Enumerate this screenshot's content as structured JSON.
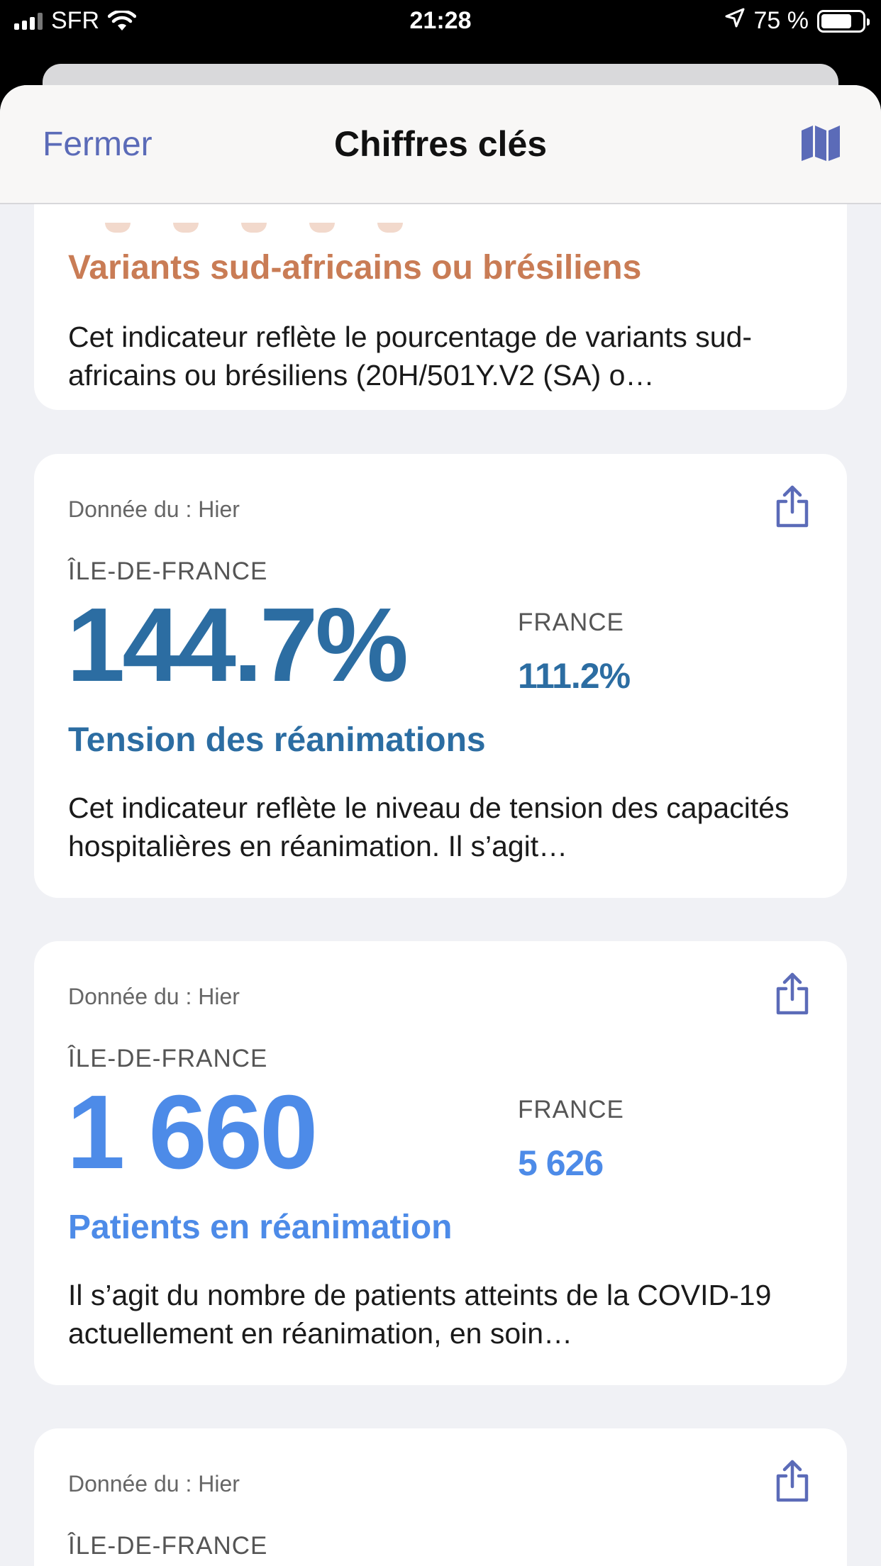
{
  "status_bar": {
    "carrier": "SFR",
    "time": "21:28",
    "battery_percent": "75 %",
    "battery_level": 0.75
  },
  "nav": {
    "close_label": "Fermer",
    "title": "Chiffres clés",
    "map_icon": "map-icon"
  },
  "cards": [
    {
      "title": "Variants sud-africains ou brésiliens",
      "description": "Cet indicateur reflète le pourcentage de variants sud-africains ou brésiliens (20H/501Y.V2 (SA) o…"
    },
    {
      "date": "Donnée du : Hier",
      "region": "ÎLE-DE-FRANCE",
      "value": "144.7%",
      "france_label": "FRANCE",
      "france_value": "111.2%",
      "title": "Tension des réanimations",
      "description": "Cet indicateur reflète le niveau de tension des capacités hospitalières en réanimation. Il s’agit…",
      "color": "#2c6da2"
    },
    {
      "date": "Donnée du : Hier",
      "region": "ÎLE-DE-FRANCE",
      "value": "1 660",
      "france_label": "FRANCE",
      "france_value": "5 626",
      "title": "Patients en réanimation",
      "description": "Il s’agit du nombre de patients atteints de la COVID-19 actuellement en réanimation, en soin…",
      "color": "#4d8be8"
    },
    {
      "date": "Donnée du : Hier",
      "region": "ÎLE-DE-FRANCE"
    }
  ]
}
